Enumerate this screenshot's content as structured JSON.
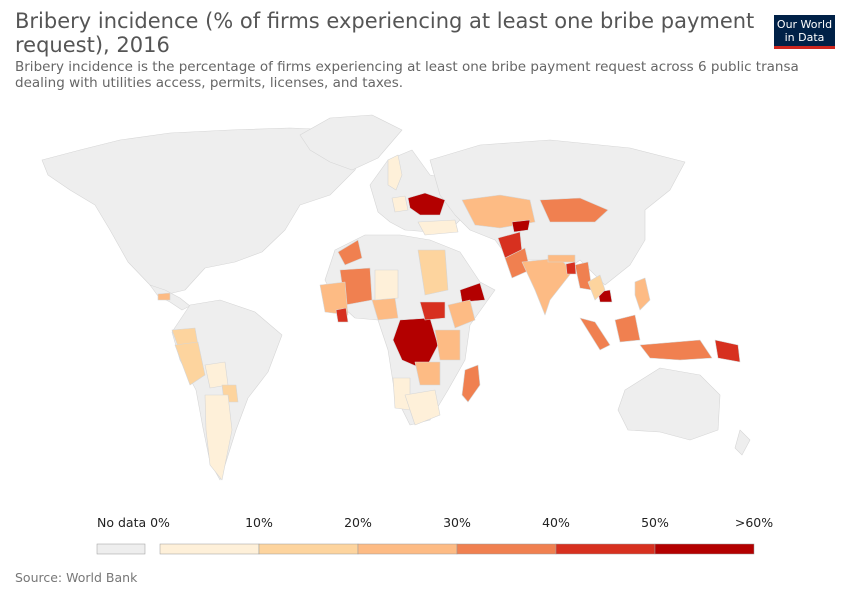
{
  "title": {
    "line1": "Bribery incidence (% of firms experiencing at least one bribe payment",
    "line2": "request), 2016"
  },
  "subtitle": {
    "line1": "Bribery incidence is the percentage of firms experiencing at least one bribe payment request across 6 public transa",
    "line2": "dealing with utilities access, permits, licenses, and taxes."
  },
  "logo": {
    "line1": "Our World",
    "line2": "in Data",
    "bg_color": "#002147",
    "accent_color": "#ce261e"
  },
  "legend": {
    "no_data_label": "No data",
    "no_data_color": "#eeeeee",
    "bins": [
      {
        "from": "0%",
        "to": "10%",
        "color": "#fef0d9"
      },
      {
        "from": "10%",
        "to": "20%",
        "color": "#fdd49e"
      },
      {
        "from": "20%",
        "to": "30%",
        "color": "#fdbb84"
      },
      {
        "from": "30%",
        "to": "40%",
        "color": "#f08050"
      },
      {
        "from": "40%",
        "to": "50%",
        "color": "#d7301f"
      },
      {
        "from": "50%",
        "to": ">60%",
        "color": "#b30000"
      }
    ],
    "tick_labels": [
      "0%",
      "10%",
      "20%",
      "30%",
      "40%",
      "50%",
      ">60%"
    ]
  },
  "map_colors": {
    "ocean": "#ffffff",
    "no_data": "#eeeeee",
    "border": "#d6d6d6"
  },
  "source": "Source: World Bank"
}
